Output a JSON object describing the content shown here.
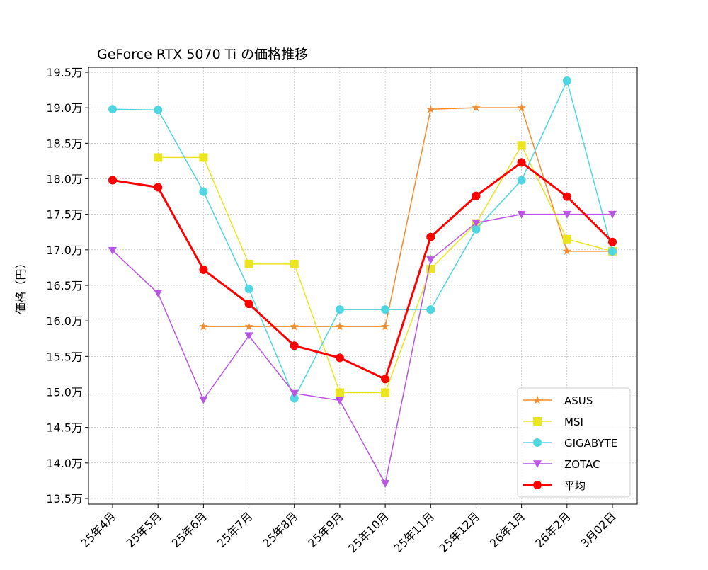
{
  "chart_data": {
    "type": "line",
    "title": "GeForce RTX 5070 Ti の価格推移",
    "xlabel": "",
    "ylabel": "価格（円）",
    "categories": [
      "25年4月",
      "25年5月",
      "25年6月",
      "25年7月",
      "25年8月",
      "25年9月",
      "25年10月",
      "25年11月",
      "25年12月",
      "26年1月",
      "26年2月",
      "3月02日"
    ],
    "yticks": [
      13.5,
      14.0,
      14.5,
      15.0,
      15.5,
      16.0,
      16.5,
      17.0,
      17.5,
      18.0,
      18.5,
      19.0,
      19.5
    ],
    "ytick_suffix": "万",
    "ylim": [
      13.42,
      19.57
    ],
    "grid": true,
    "legend_position": "lower-right",
    "series": [
      {
        "name": "ASUS",
        "color": "#f58b2a",
        "marker": "star",
        "width": 1.5,
        "values": [
          null,
          null,
          15.92,
          15.92,
          15.92,
          15.92,
          15.92,
          18.98,
          19.0,
          19.0,
          16.98,
          16.98
        ]
      },
      {
        "name": "MSI",
        "color": "#ebe521",
        "marker": "square",
        "width": 1.5,
        "values": [
          null,
          18.3,
          18.3,
          16.8,
          16.8,
          14.99,
          14.99,
          16.73,
          17.37,
          18.47,
          17.15,
          16.98
        ]
      },
      {
        "name": "GIGABYTE",
        "color": "#4fd6e0",
        "marker": "circle",
        "width": 1.5,
        "values": [
          18.98,
          18.97,
          17.82,
          16.45,
          14.91,
          16.16,
          16.16,
          16.16,
          17.29,
          17.98,
          19.38,
          16.98
        ]
      },
      {
        "name": "ZOTAC",
        "color": "#b856e2",
        "marker": "triangle-down",
        "width": 1.5,
        "values": [
          16.99,
          16.39,
          14.89,
          15.79,
          14.98,
          14.88,
          13.71,
          16.86,
          17.38,
          17.5,
          17.5,
          17.5
        ]
      },
      {
        "name": "平均",
        "color": "#ff0000",
        "marker": "circle",
        "width": 3,
        "values": [
          17.98,
          17.88,
          16.72,
          16.24,
          15.65,
          15.48,
          15.18,
          17.18,
          17.76,
          18.23,
          17.75,
          17.11
        ]
      }
    ]
  }
}
